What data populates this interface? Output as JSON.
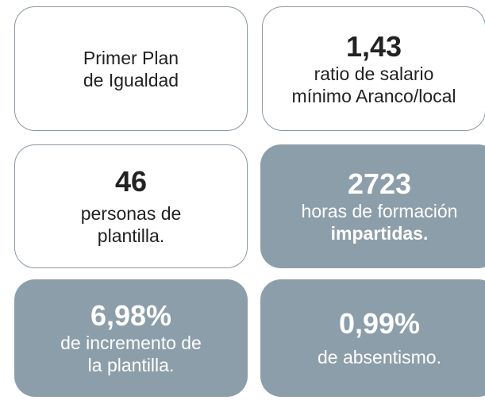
{
  "cards": [
    {
      "lines": [
        "Primer Plan",
        "de Igualdad"
      ]
    },
    {
      "value": "1,43",
      "lines": [
        "ratio de salario",
        "mínimo Aranco/local"
      ]
    },
    {
      "value": "46",
      "lines": [
        "personas de",
        "plantilla."
      ]
    },
    {
      "value": "2723",
      "lines": [
        "horas de formación",
        "impartidas."
      ]
    },
    {
      "value": "6,98%",
      "lines": [
        "de incremento de",
        "la plantilla."
      ]
    },
    {
      "value": "0,99%",
      "lines": [
        "de absentismo."
      ]
    }
  ]
}
